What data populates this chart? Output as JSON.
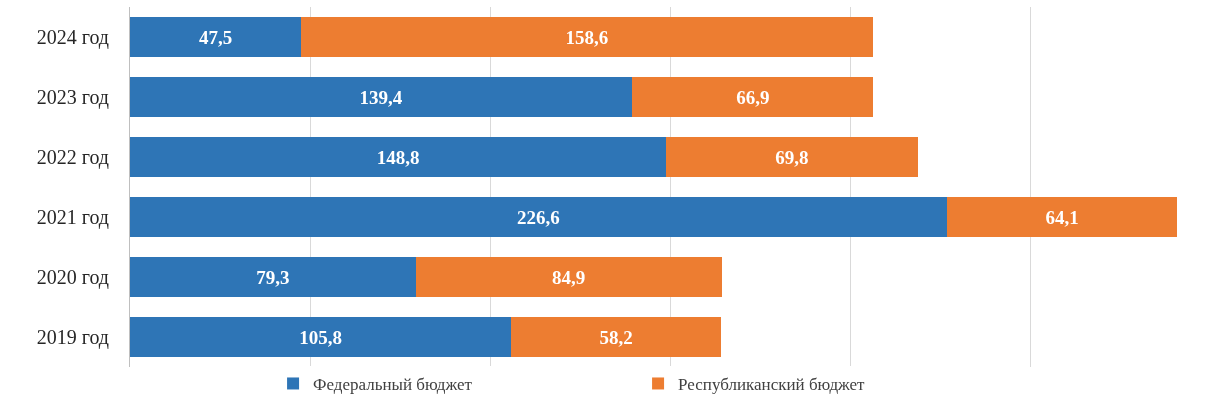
{
  "chart_data": {
    "type": "bar",
    "orientation": "horizontal",
    "stacked": true,
    "categories": [
      "2024 год",
      "2023 год",
      "2022 год",
      "2021 год",
      "2020 год",
      "2019 год"
    ],
    "series": [
      {
        "name": "Федеральный бюджет",
        "color": "#2e75b6",
        "values": [
          47.5,
          139.4,
          148.8,
          226.6,
          79.3,
          105.8
        ],
        "value_labels": [
          "47,5",
          "139,4",
          "148,8",
          "226,6",
          "79,3",
          "105,8"
        ]
      },
      {
        "name": "Республиканский бюджет",
        "color": "#ed7d31",
        "values": [
          158.6,
          66.9,
          69.8,
          64.1,
          84.9,
          58.2
        ],
        "value_labels": [
          "158,6",
          "66,9",
          "69,8",
          "64,1",
          "84,9",
          "58,2"
        ]
      }
    ],
    "xlim": [
      0,
      300
    ],
    "xticks": [
      {
        "value": 0,
        "label": null
      },
      {
        "value": 50,
        "label": null
      },
      {
        "value": 100,
        "label": null
      },
      {
        "value": 150,
        "label": null
      },
      {
        "value": 200,
        "label": null
      },
      {
        "value": 250,
        "label": null
      }
    ],
    "tick_labels": "y",
    "grid": "x",
    "legend": "bottom"
  }
}
